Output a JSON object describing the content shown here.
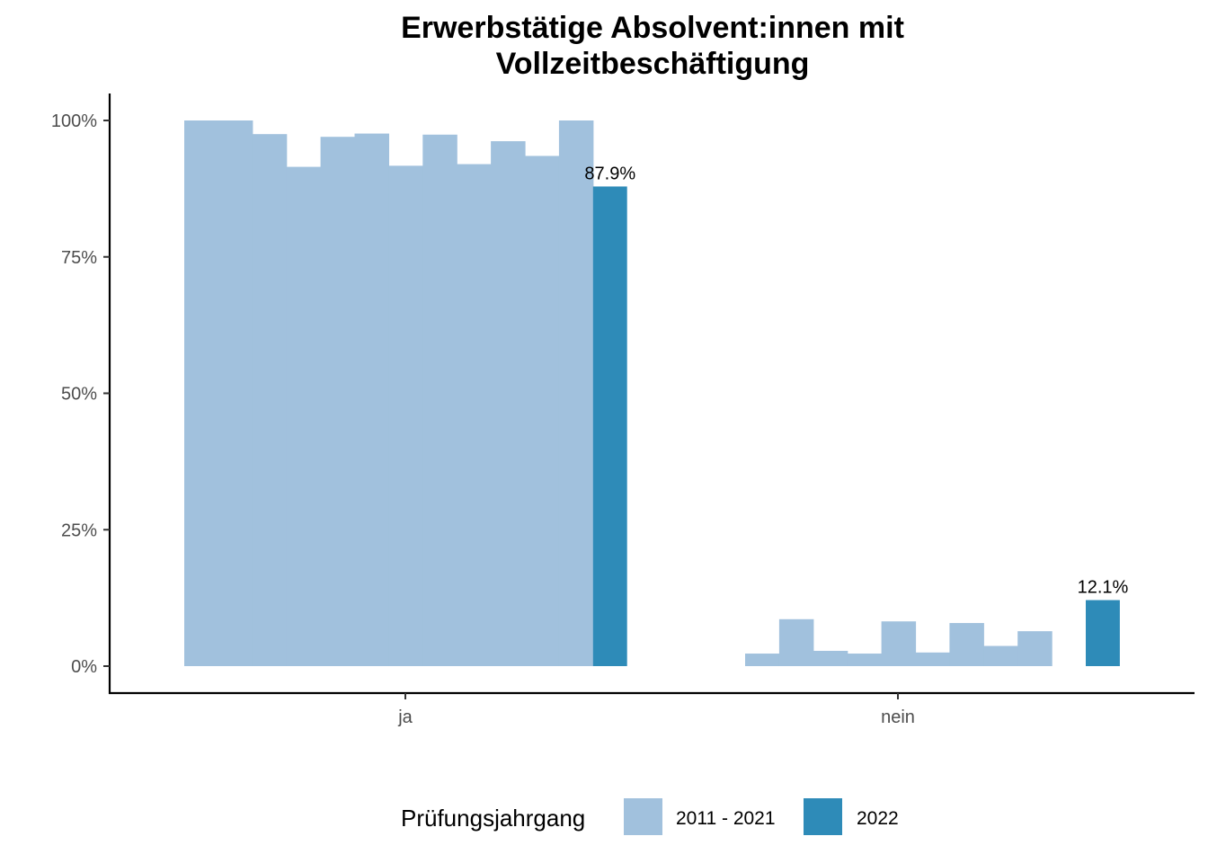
{
  "chart_data": {
    "type": "bar",
    "title_lines": [
      "Erwerbstätige Absolvent:innen mit",
      "Vollzeitbeschäftigung"
    ],
    "categories": [
      "ja",
      "nein"
    ],
    "y_ticks": [
      {
        "value": 0,
        "label": "0%"
      },
      {
        "value": 25,
        "label": "25%"
      },
      {
        "value": 50,
        "label": "50%"
      },
      {
        "value": 75,
        "label": "75%"
      },
      {
        "value": 100,
        "label": "100%"
      }
    ],
    "ylim": [
      -5,
      105
    ],
    "legend_title": "Prüfungsjahrgang",
    "legend_position": "bottom",
    "grid": false,
    "series": [
      {
        "name": "2011 - 2021",
        "color": "#a1c1dd",
        "values_by_category": [
          [
            100,
            100,
            97.5,
            91.5,
            97.0,
            97.6,
            91.7,
            97.4,
            92.0,
            96.2,
            93.5,
            100
          ],
          [
            2.3,
            8.6,
            2.8,
            2.3,
            8.2,
            2.5,
            7.9,
            3.7,
            6.4
          ]
        ]
      },
      {
        "name": "2022",
        "color": "#2e8bb8",
        "values_by_category": [
          [
            87.9
          ],
          [
            12.1
          ]
        ],
        "labels": [
          "87.9%",
          "12.1%"
        ]
      }
    ]
  }
}
